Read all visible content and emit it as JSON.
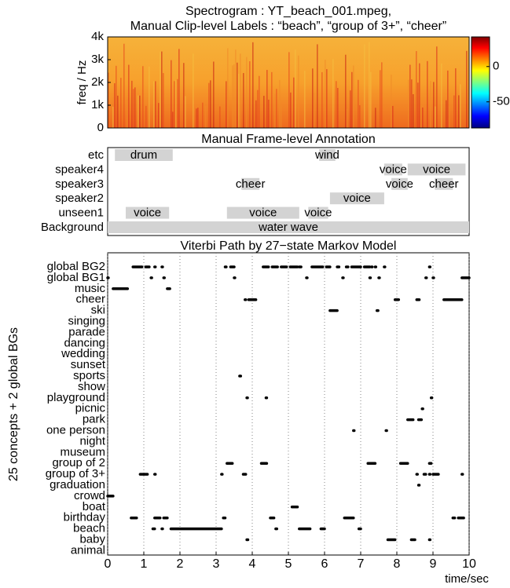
{
  "chart_data": [
    {
      "type": "spectrogram",
      "title": "Spectrogram : YT_beach_001.mpeg,",
      "subtitle": "Manual Clip-level Labels : “beach”, “group of 3+”, “cheer”",
      "ylabel": "freq / Hz",
      "xlim": [
        0,
        10
      ],
      "ylim": [
        0,
        4000
      ],
      "yticks": [
        0,
        {
          "value": 1000,
          "label": "1k"
        },
        {
          "value": 2000,
          "label": "2k"
        },
        {
          "value": 3000,
          "label": "3k"
        },
        {
          "value": 4000,
          "label": "4k"
        }
      ],
      "clim": [
        -87,
        42
      ],
      "cticks": [
        0,
        -50
      ]
    },
    {
      "type": "timeline",
      "title": "Manual Frame-level Annotation",
      "xlim": [
        0,
        10
      ],
      "rows": [
        {
          "name": "etc",
          "segments": [
            {
              "label": "drum",
              "start": 0.2,
              "end": 1.8
            },
            {
              "label": "wind",
              "start": 5.85,
              "end": 6.3
            }
          ]
        },
        {
          "name": "speaker4",
          "segments": [
            {
              "label": "voice",
              "start": 7.65,
              "end": 8.15
            },
            {
              "label": "voice",
              "start": 8.3,
              "end": 9.9
            }
          ]
        },
        {
          "name": "speaker3",
          "segments": [
            {
              "label": "cheer",
              "start": 3.7,
              "end": 4.2
            },
            {
              "label": "voice",
              "start": 7.85,
              "end": 8.3
            },
            {
              "label": "cheer",
              "start": 9.05,
              "end": 9.55
            }
          ]
        },
        {
          "name": "speaker2",
          "segments": [
            {
              "label": "voice",
              "start": 6.15,
              "end": 7.65
            }
          ]
        },
        {
          "name": "unseen1",
          "segments": [
            {
              "label": "voice",
              "start": 0.5,
              "end": 1.7
            },
            {
              "label": "voice",
              "start": 3.3,
              "end": 5.3
            },
            {
              "label": "voice",
              "start": 5.55,
              "end": 6.1
            }
          ]
        },
        {
          "name": "Background",
          "segments": [
            {
              "label": "water wave",
              "start": 0,
              "end": 10
            }
          ]
        }
      ]
    },
    {
      "type": "state-path",
      "title": "Viterbi Path by 27−state Markov Model",
      "ylabel": "25 concepts + 2 global BGs",
      "xlabel": "time/sec",
      "xlim": [
        0,
        10
      ],
      "xticks": [
        0,
        1,
        2,
        3,
        4,
        5,
        6,
        7,
        8,
        9,
        10
      ],
      "grid": true,
      "color": "#000000",
      "states": [
        {
          "name": "global BG2",
          "segments": [
            [
              0.7,
              0.95
            ],
            [
              1.05,
              1.15
            ],
            [
              1.3,
              1.32
            ],
            [
              1.5,
              1.52
            ],
            [
              3.25,
              3.28
            ],
            [
              3.4,
              3.5
            ],
            [
              4.3,
              4.45
            ],
            [
              4.55,
              4.7
            ],
            [
              4.8,
              4.95
            ],
            [
              5.05,
              5.25
            ],
            [
              5.3,
              5.35
            ],
            [
              5.65,
              5.95
            ],
            [
              6.05,
              6.15
            ],
            [
              6.35,
              6.4
            ],
            [
              6.6,
              6.65
            ],
            [
              6.75,
              7.0
            ],
            [
              7.1,
              7.25
            ],
            [
              7.3,
              7.32
            ],
            [
              7.4,
              7.42
            ],
            [
              7.65,
              7.67
            ],
            [
              8.9,
              8.92
            ]
          ]
        },
        {
          "name": "global BG1",
          "segments": [
            [
              0.0,
              0.02
            ],
            [
              1.2,
              1.22
            ],
            [
              1.55,
              1.57
            ],
            [
              3.5,
              3.52
            ],
            [
              5.5,
              5.52
            ],
            [
              6.5,
              6.52
            ],
            [
              7.25,
              7.27
            ],
            [
              7.5,
              7.52
            ],
            [
              8.8,
              8.82
            ],
            [
              9.0,
              9.02
            ],
            [
              9.8,
              10.0
            ]
          ]
        },
        {
          "name": "music",
          "segments": [
            [
              0.15,
              0.55
            ],
            [
              1.65,
              1.72
            ]
          ]
        },
        {
          "name": "cheer",
          "segments": [
            [
              3.8,
              3.82
            ],
            [
              3.9,
              4.1
            ],
            [
              7.95,
              8.05
            ],
            [
              8.55,
              8.62
            ],
            [
              9.3,
              9.8
            ]
          ]
        },
        {
          "name": "ski",
          "segments": [
            [
              6.15,
              6.35
            ],
            [
              7.45,
              7.48
            ]
          ]
        },
        {
          "name": "singing",
          "segments": []
        },
        {
          "name": "parade",
          "segments": []
        },
        {
          "name": "dancing",
          "segments": []
        },
        {
          "name": "wedding",
          "segments": []
        },
        {
          "name": "sunset",
          "segments": []
        },
        {
          "name": "sports",
          "segments": [
            [
              3.65,
              3.68
            ]
          ]
        },
        {
          "name": "show",
          "segments": []
        },
        {
          "name": "playground",
          "segments": [
            [
              3.85,
              3.87
            ],
            [
              4.38,
              4.4
            ],
            [
              8.95,
              8.97
            ]
          ]
        },
        {
          "name": "picnic",
          "segments": [
            [
              8.7,
              8.72
            ]
          ]
        },
        {
          "name": "park",
          "segments": [
            [
              8.3,
              8.45
            ],
            [
              8.6,
              8.68
            ]
          ]
        },
        {
          "name": "one person",
          "segments": [
            [
              6.8,
              6.82
            ],
            [
              7.7,
              7.72
            ]
          ]
        },
        {
          "name": "night",
          "segments": []
        },
        {
          "name": "museum",
          "segments": []
        },
        {
          "name": "group of 2",
          "segments": [
            [
              3.3,
              3.45
            ],
            [
              4.25,
              4.4
            ],
            [
              7.2,
              7.4
            ],
            [
              8.1,
              8.3
            ],
            [
              8.9,
              8.95
            ]
          ]
        },
        {
          "name": "group of 3+",
          "segments": [
            [
              0.9,
              1.1
            ],
            [
              1.3,
              1.32
            ],
            [
              3.15,
              3.17
            ],
            [
              3.75,
              3.82
            ],
            [
              8.55,
              8.57
            ],
            [
              8.75,
              8.8
            ],
            [
              8.9,
              8.92
            ],
            [
              9.0,
              9.15
            ],
            [
              9.8,
              9.82
            ]
          ]
        },
        {
          "name": "graduation",
          "segments": [
            [
              8.6,
              8.62
            ]
          ]
        },
        {
          "name": "crowd",
          "segments": [
            [
              0.0,
              0.15
            ]
          ]
        },
        {
          "name": "boat",
          "segments": [
            [
              5.1,
              5.25
            ]
          ]
        },
        {
          "name": "birthday",
          "segments": [
            [
              0.65,
              0.8
            ],
            [
              1.3,
              1.45
            ],
            [
              1.55,
              1.65
            ],
            [
              3.2,
              3.25
            ],
            [
              4.5,
              4.6
            ],
            [
              6.55,
              6.8
            ],
            [
              9.55,
              9.6
            ],
            [
              9.7,
              9.85
            ]
          ]
        },
        {
          "name": "beach",
          "segments": [
            [
              1.25,
              1.3
            ],
            [
              1.5,
              1.52
            ],
            [
              1.75,
              3.15
            ],
            [
              4.65,
              4.68
            ],
            [
              5.3,
              5.6
            ],
            [
              5.9,
              6.0
            ],
            [
              6.95,
              7.0
            ]
          ]
        },
        {
          "name": "baby",
          "segments": [
            [
              3.85,
              3.88
            ],
            [
              7.75,
              7.95
            ],
            [
              8.4,
              8.5
            ],
            [
              8.9,
              8.92
            ]
          ]
        },
        {
          "name": "animal",
          "segments": []
        }
      ]
    }
  ]
}
